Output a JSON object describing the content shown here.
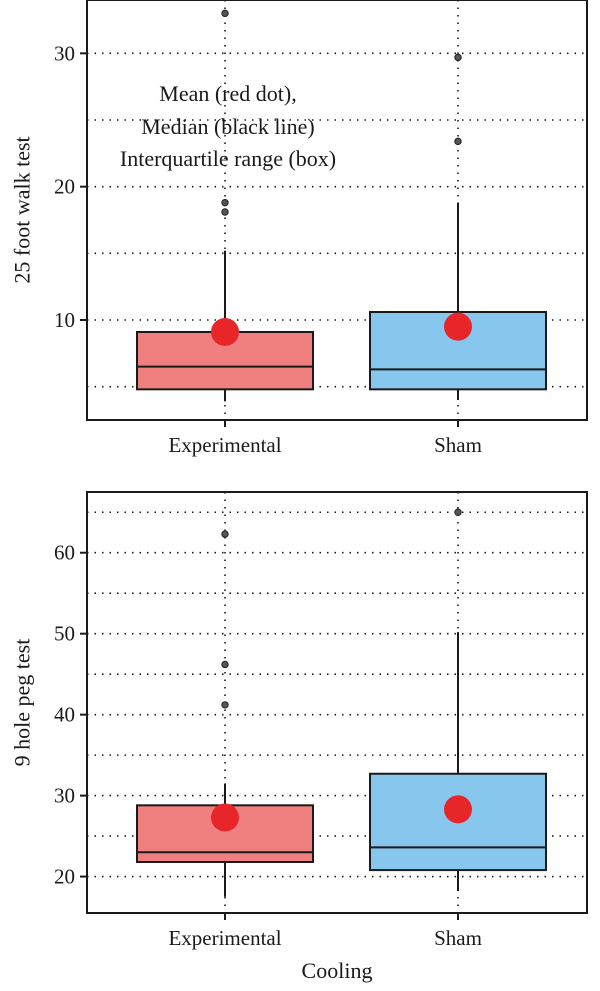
{
  "chart_data": [
    {
      "type": "box",
      "ylabel": "25 foot walk test",
      "xlabel": "",
      "ylim": [
        2.5,
        34
      ],
      "yticks": [
        10,
        20,
        30
      ],
      "grid": true,
      "grid_style": "dotted",
      "annotation_lines": [
        "Mean (red dot),",
        "Median (black line)",
        "Interquartile range (box)"
      ],
      "categories": [
        "Experimental",
        "Sham"
      ],
      "boxes": [
        {
          "category": "Experimental",
          "color": "#f08080",
          "q1": 4.8,
          "median": 6.5,
          "q3": 9.1,
          "whisker_low": 3.9,
          "whisker_high": 15.2,
          "mean": 9.1,
          "outliers": [
            18.1,
            18.8,
            33.0
          ]
        },
        {
          "category": "Sham",
          "color": "#87c6ed",
          "q1": 4.8,
          "median": 6.3,
          "q3": 10.6,
          "whisker_low": 4.0,
          "whisker_high": 18.8,
          "mean": 9.5,
          "outliers": [
            23.4,
            29.7
          ]
        }
      ]
    },
    {
      "type": "box",
      "ylabel": "9 hole peg test",
      "xlabel": "Cooling",
      "ylim": [
        15.5,
        67.5
      ],
      "yticks": [
        20,
        30,
        40,
        50,
        60
      ],
      "grid": true,
      "grid_style": "dotted",
      "annotation_lines": [],
      "categories": [
        "Experimental",
        "Sham"
      ],
      "boxes": [
        {
          "category": "Experimental",
          "color": "#f08080",
          "q1": 21.8,
          "median": 23.0,
          "q3": 28.8,
          "whisker_low": 17.5,
          "whisker_high": 31.5,
          "mean": 27.3,
          "outliers": [
            41.2,
            46.2,
            62.3
          ]
        },
        {
          "category": "Sham",
          "color": "#87c6ed",
          "q1": 20.8,
          "median": 23.6,
          "q3": 32.7,
          "whisker_low": 18.2,
          "whisker_high": 50.2,
          "mean": 28.3,
          "outliers": [
            65.0
          ]
        }
      ]
    }
  ],
  "colors": {
    "mean_dot": "#e8262a",
    "outlier": "#555555",
    "frame": "#1a1a1a",
    "grid": "#1a1a1a"
  }
}
